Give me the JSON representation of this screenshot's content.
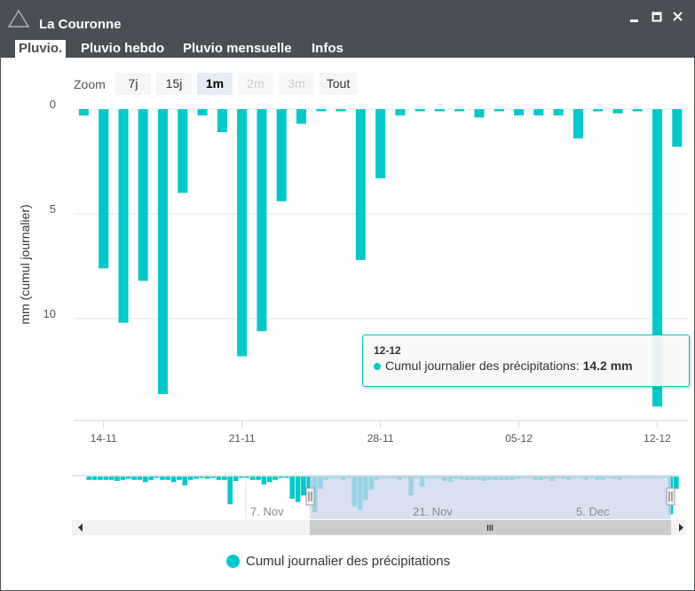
{
  "window": {
    "title": "La Couronne"
  },
  "tabs": [
    {
      "label": "Pluvio.",
      "active": true
    },
    {
      "label": "Pluvio hebdo",
      "active": false
    },
    {
      "label": "Pluvio mensuelle",
      "active": false
    },
    {
      "label": "Infos",
      "active": false
    }
  ],
  "zoom": {
    "label": "Zoom",
    "buttons": [
      {
        "label": "7j",
        "state": "normal"
      },
      {
        "label": "15j",
        "state": "normal"
      },
      {
        "label": "1m",
        "state": "selected"
      },
      {
        "label": "2m",
        "state": "disabled"
      },
      {
        "label": "3m",
        "state": "disabled"
      },
      {
        "label": "Tout",
        "state": "normal"
      }
    ]
  },
  "tooltip": {
    "date": "12-12",
    "series": "Cumul journalier des précipitations: ",
    "value": "14.2 mm"
  },
  "navigator": {
    "labels": [
      "7. Nov",
      "21. Nov",
      "5. Dec"
    ],
    "scroll_grip": "III"
  },
  "legend": {
    "label": "Cumul journalier des précipitations"
  },
  "colors": {
    "series": "#00c9c9",
    "titlebar": "#4a4f55",
    "navigator_mask": "#ccd6eb"
  },
  "chart_data": {
    "type": "bar",
    "ylabel": "mm (cumul journalier)",
    "y_axis_reversed": true,
    "ylim": [
      0,
      15
    ],
    "yticks": [
      0,
      5,
      10
    ],
    "xticks": [
      "14-11",
      "21-11",
      "28-11",
      "05-12",
      "12-12"
    ],
    "grid": true,
    "legend_position": "bottom-center",
    "series": [
      {
        "name": "Cumul journalier des précipitations",
        "x": [
          "13-11",
          "14-11",
          "15-11",
          "16-11",
          "17-11",
          "18-11",
          "19-11",
          "20-11",
          "21-11",
          "22-11",
          "23-11",
          "24-11",
          "25-11",
          "26-11",
          "27-11",
          "28-11",
          "29-11",
          "30-11",
          "01-12",
          "02-12",
          "03-12",
          "04-12",
          "05-12",
          "06-12",
          "07-12",
          "08-12",
          "09-12",
          "10-12",
          "11-12",
          "12-12",
          "13-12"
        ],
        "values": [
          0.3,
          7.6,
          10.2,
          8.2,
          13.6,
          4.0,
          0.3,
          1.1,
          11.8,
          10.6,
          4.4,
          0.7,
          0.1,
          0.1,
          7.2,
          3.3,
          0.3,
          0.1,
          0.1,
          0.1,
          0.4,
          0.1,
          0.3,
          0.3,
          0.3,
          1.4,
          0.1,
          0.2,
          0.1,
          14.2,
          1.8
        ]
      }
    ],
    "navigator_series": {
      "values": [
        0.3,
        0.3,
        0.3,
        0.3,
        0.3,
        0.4,
        0.3,
        0.2,
        0.3,
        0.3,
        0.5,
        0.3,
        0.1,
        0.3,
        0.3,
        0.5,
        0.3,
        0.8,
        0.3,
        0.2,
        0.1,
        0.2,
        0.1,
        0.3,
        0.3,
        2.5,
        0.4,
        0.1,
        0.1,
        0.3,
        0.3,
        0.7,
        0.5,
        0.3,
        0.1,
        0.1,
        2.0,
        2.3,
        1.7,
        2.0,
        3.2,
        1.1,
        0.3,
        0.1,
        0.1,
        0.3,
        0.1,
        2.7,
        3.0,
        2.1,
        1.2,
        0.3,
        0.1,
        0.1,
        0.1,
        0.3,
        0.1,
        1.7,
        0.1,
        0.9,
        0.1,
        0.1,
        0.1,
        0.4,
        0.5,
        0.2,
        0.3,
        0.3,
        0.3,
        0.3,
        0.4,
        0.3,
        0.3,
        0.3,
        0.3,
        0.3,
        0.2,
        0.1,
        0.1,
        0.3,
        0.3,
        0.2,
        0.4,
        0.1,
        0.2,
        0.3,
        0.1,
        0.1,
        0.3,
        0.1,
        0.3,
        0.3,
        0.1,
        0.2,
        0.3,
        0.1,
        0.1,
        0.1,
        0.1,
        0.1,
        0.1,
        0.1,
        0.1,
        3.4,
        1.1
      ]
    }
  }
}
